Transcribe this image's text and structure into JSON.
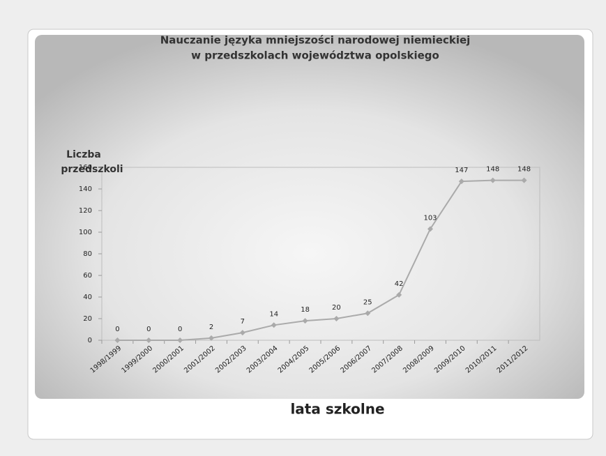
{
  "chart_data": {
    "type": "line",
    "title": [
      "Nauczanie języka mniejszości narodowej niemieckiej",
      "w przedszkolach województwa opolskiego"
    ],
    "ylabel": [
      "Liczba",
      "przedszkoli"
    ],
    "xlabel": "lata szkolne",
    "categories": [
      "1998/1999",
      "1999/2000",
      "2000/2001",
      "2001/2002",
      "2002/2003",
      "2003/2004",
      "2004/2005",
      "2005/2006",
      "2006/2007",
      "2007/2008",
      "2008/2009",
      "2009/2010",
      "2010/2011",
      "2011/2012"
    ],
    "series": [
      {
        "name": "Liczba przedszkoli",
        "color": "#aaaaaa",
        "values": [
          0,
          0,
          0,
          2,
          7,
          14,
          18,
          20,
          25,
          42,
          103,
          147,
          148,
          148
        ]
      }
    ],
    "ylim": [
      0,
      160
    ],
    "yticks": [
      0,
      20,
      40,
      60,
      80,
      100,
      120,
      140,
      160
    ],
    "grid": false
  }
}
